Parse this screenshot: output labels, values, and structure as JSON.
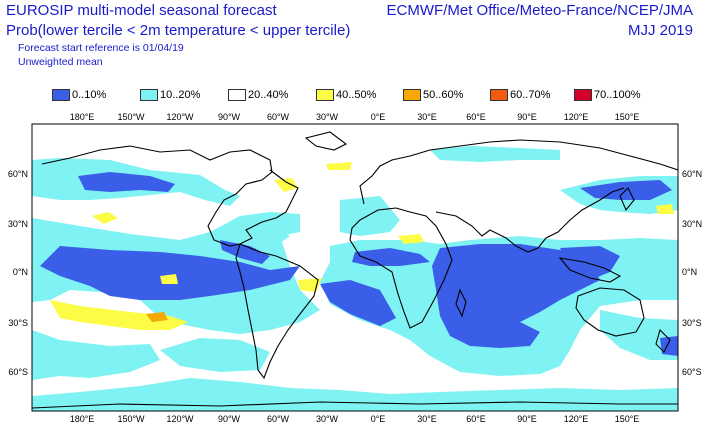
{
  "header": {
    "title_line1": "EUROSIP multi-model seasonal forecast",
    "title_line2": "Prob(lower tercile < 2m temperature < upper tercile)",
    "subtitle_line1": "Forecast start reference is 01/04/19",
    "subtitle_line2": "Unweighted mean",
    "centres": "ECMWF/Met Office/Meteo-France/NCEP/JMA",
    "season": "MJJ 2019"
  },
  "legend": [
    {
      "label": "0..10%",
      "color": "#3a5ee8"
    },
    {
      "label": "10..20%",
      "color": "#7ff2f4"
    },
    {
      "label": "20..40%",
      "color": "#ffffff"
    },
    {
      "label": "40..50%",
      "color": "#fcfc46"
    },
    {
      "label": "50..60%",
      "color": "#f6a800"
    },
    {
      "label": "60..70%",
      "color": "#f25a12"
    },
    {
      "label": "70..100%",
      "color": "#d4002a"
    }
  ],
  "axes": {
    "lon_labels": [
      "180°E",
      "150°W",
      "120°W",
      "90°W",
      "60°W",
      "30°W",
      "0°E",
      "30°E",
      "60°E",
      "90°E",
      "120°E",
      "150°E"
    ],
    "lat_labels": [
      "60°N",
      "30°N",
      "0°N",
      "30°S",
      "60°S"
    ]
  }
}
